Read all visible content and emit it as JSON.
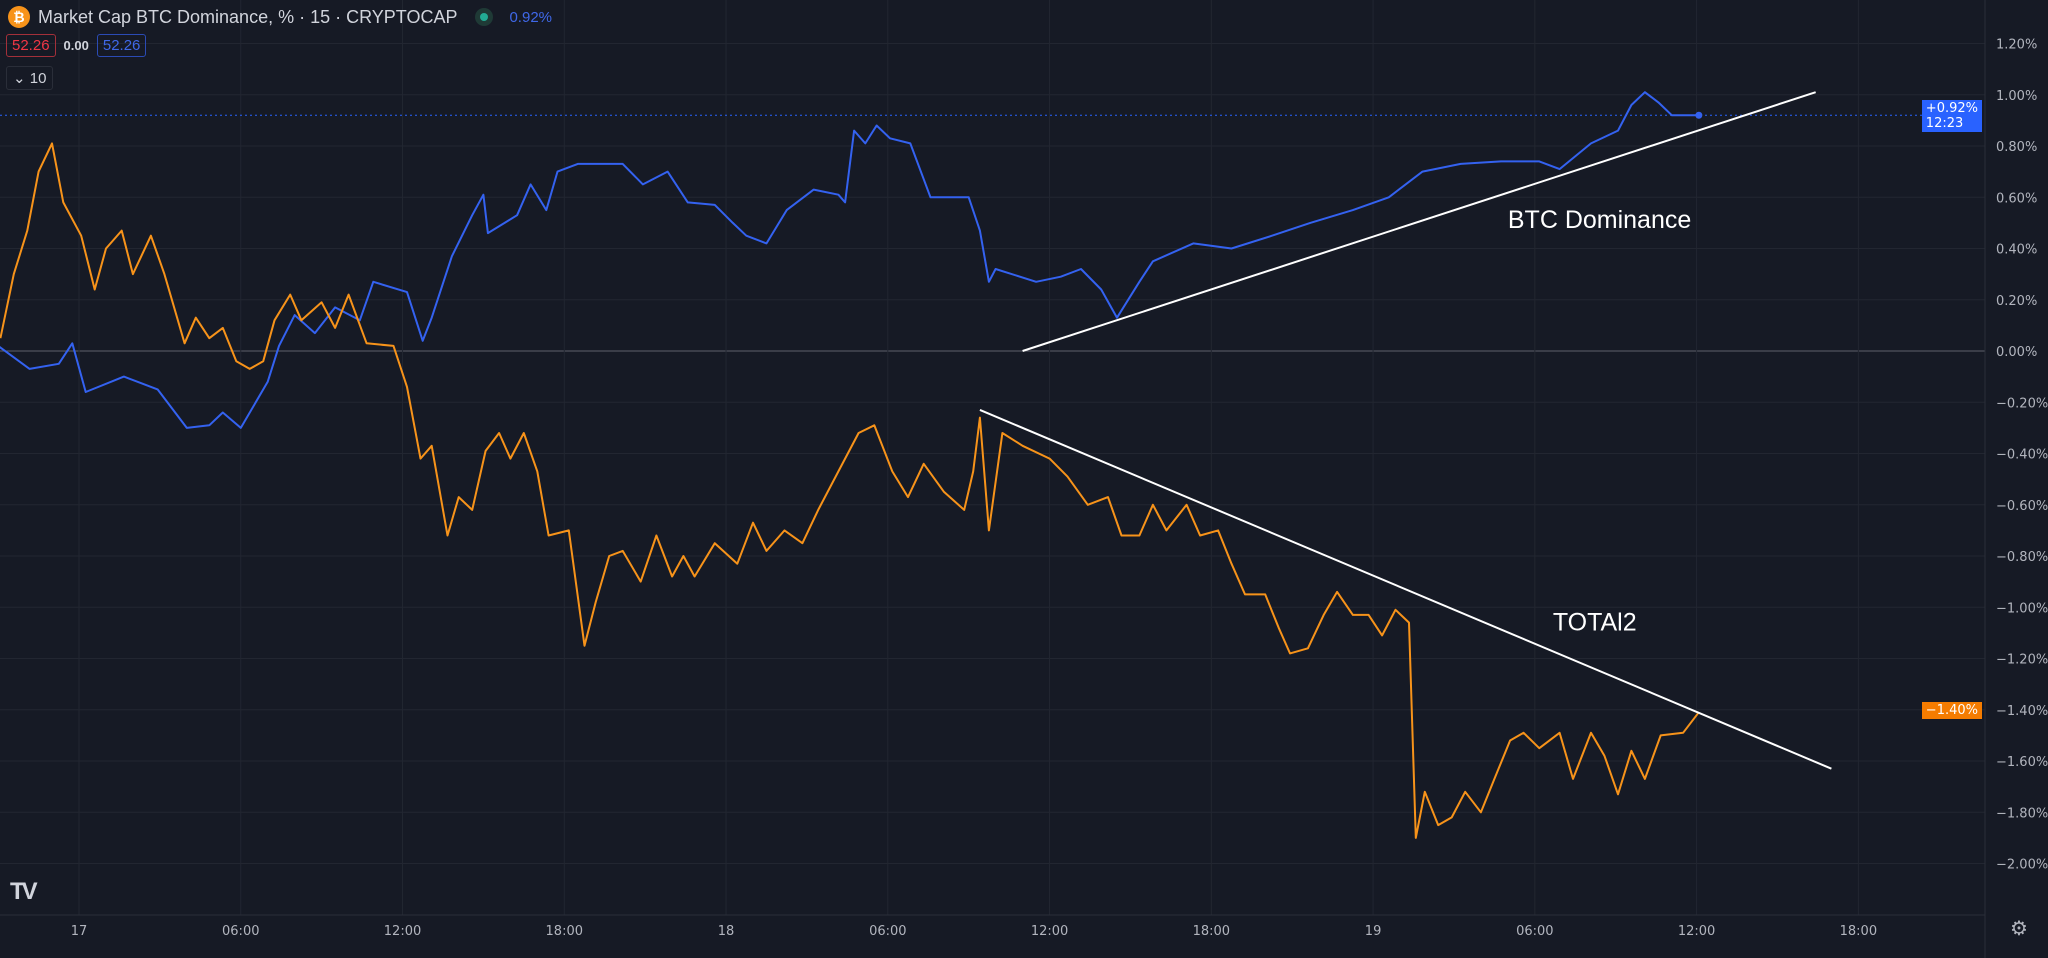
{
  "header": {
    "title": "Market Cap BTC Dominance, % · 15 · CRYPTOCAP",
    "change": "0.92%",
    "value_left": "52.26",
    "value_mid": "0.00",
    "value_right": "52.26",
    "indicators_count": "10",
    "icons": {
      "symbol": "bitcoin-icon",
      "status": "market-open-dot",
      "collapse": "chevron-down-icon",
      "settings": "gear-icon",
      "logo": "tradingview-logo"
    }
  },
  "colors": {
    "background": "#161a25",
    "grid": "#222631",
    "btc_dominance": "#3462f0",
    "total2": "#f7931a",
    "trendline": "#ffffff",
    "axis_text": "#b2b5be"
  },
  "badges": {
    "btc": {
      "value": "+0.92%",
      "time": "12:23"
    },
    "total2": {
      "value": "−1.40%"
    }
  },
  "chart_data": {
    "type": "line",
    "ylim": [
      -2.1,
      1.3
    ],
    "yticks": [
      "1.20%",
      "1.00%",
      "0.80%",
      "0.60%",
      "0.40%",
      "0.20%",
      "0.00%",
      "−0.20%",
      "−0.40%",
      "−0.60%",
      "−0.80%",
      "−1.00%",
      "−1.20%",
      "−1.40%",
      "−1.60%",
      "−1.80%",
      "−2.00%"
    ],
    "ytick_values": [
      1.2,
      1.0,
      0.8,
      0.6,
      0.4,
      0.2,
      0,
      -0.2,
      -0.4,
      -0.6,
      -0.8,
      -1.0,
      -1.2,
      -1.4,
      -1.6,
      -1.8,
      -2.0
    ],
    "xticks": [
      {
        "t": "17 00:00",
        "label": "17"
      },
      {
        "t": "17 06:00",
        "label": "06:00"
      },
      {
        "t": "17 12:00",
        "label": "12:00"
      },
      {
        "t": "17 18:00",
        "label": "18:00"
      },
      {
        "t": "18 00:00",
        "label": "18"
      },
      {
        "t": "18 06:00",
        "label": "06:00"
      },
      {
        "t": "18 12:00",
        "label": "12:00"
      },
      {
        "t": "18 18:00",
        "label": "18:00"
      },
      {
        "t": "19 00:00",
        "label": "19"
      },
      {
        "t": "19 06:00",
        "label": "06:00"
      },
      {
        "t": "19 12:00",
        "label": "12:00"
      },
      {
        "t": "19 18:00",
        "label": "18:00"
      }
    ],
    "grid": true,
    "series": [
      {
        "key": "btc",
        "color": "#3462f0",
        "points": [
          [
            "16 21:00",
            0.02
          ],
          [
            "16 22:10",
            -0.07
          ],
          [
            "16 23:15",
            -0.05
          ],
          [
            "16 23:45",
            0.03
          ],
          [
            "17 00:15",
            -0.16
          ],
          [
            "17 01:40",
            -0.1
          ],
          [
            "17 02:55",
            -0.15
          ],
          [
            "17 04:00",
            -0.3
          ],
          [
            "17 04:50",
            -0.29
          ],
          [
            "17 05:20",
            -0.24
          ],
          [
            "17 06:00",
            -0.3
          ],
          [
            "17 07:00",
            -0.12
          ],
          [
            "17 07:25",
            0.02
          ],
          [
            "17 08:00",
            0.14
          ],
          [
            "17 08:45",
            0.07
          ],
          [
            "17 09:30",
            0.17
          ],
          [
            "17 10:25",
            0.12
          ],
          [
            "17 10:55",
            0.27
          ],
          [
            "17 12:10",
            0.23
          ],
          [
            "17 12:45",
            0.04
          ],
          [
            "17 13:05",
            0.13
          ],
          [
            "17 13:50",
            0.37
          ],
          [
            "17 14:35",
            0.53
          ],
          [
            "17 15:00",
            0.61
          ],
          [
            "17 15:10",
            0.46
          ],
          [
            "17 16:15",
            0.53
          ],
          [
            "17 16:45",
            0.65
          ],
          [
            "17 17:20",
            0.55
          ],
          [
            "17 17:45",
            0.7
          ],
          [
            "17 18:30",
            0.73
          ],
          [
            "17 20:10",
            0.73
          ],
          [
            "17 20:55",
            0.65
          ],
          [
            "17 21:50",
            0.7
          ],
          [
            "17 22:35",
            0.58
          ],
          [
            "17 23:35",
            0.57
          ],
          [
            "18 00:15",
            0.5
          ],
          [
            "18 00:45",
            0.45
          ],
          [
            "18 01:30",
            0.42
          ],
          [
            "18 02:15",
            0.55
          ],
          [
            "18 03:15",
            0.63
          ],
          [
            "18 04:10",
            0.61
          ],
          [
            "18 04:25",
            0.58
          ],
          [
            "18 04:45",
            0.86
          ],
          [
            "18 05:10",
            0.81
          ],
          [
            "18 05:35",
            0.88
          ],
          [
            "18 06:05",
            0.83
          ],
          [
            "18 06:50",
            0.81
          ],
          [
            "18 07:35",
            0.6
          ],
          [
            "18 09:00",
            0.6
          ],
          [
            "18 09:25",
            0.47
          ],
          [
            "18 09:45",
            0.27
          ],
          [
            "18 10:00",
            0.32
          ],
          [
            "18 11:30",
            0.27
          ],
          [
            "18 12:25",
            0.29
          ],
          [
            "18 13:10",
            0.32
          ],
          [
            "18 13:55",
            0.24
          ],
          [
            "18 14:30",
            0.13
          ],
          [
            "18 15:20",
            0.27
          ],
          [
            "18 15:50",
            0.35
          ],
          [
            "18 17:20",
            0.42
          ],
          [
            "18 18:45",
            0.4
          ],
          [
            "18 20:15",
            0.45
          ],
          [
            "18 21:40",
            0.5
          ],
          [
            "18 23:15",
            0.55
          ],
          [
            "19 00:35",
            0.6
          ],
          [
            "19 01:50",
            0.7
          ],
          [
            "19 03:15",
            0.73
          ],
          [
            "19 04:45",
            0.74
          ],
          [
            "19 06:10",
            0.74
          ],
          [
            "19 06:55",
            0.71
          ],
          [
            "19 08:05",
            0.81
          ],
          [
            "19 09:05",
            0.86
          ],
          [
            "19 09:35",
            0.96
          ],
          [
            "19 10:05",
            1.01
          ],
          [
            "19 10:35",
            0.97
          ],
          [
            "19 11:05",
            0.92
          ],
          [
            "19 12:05",
            0.92
          ]
        ]
      },
      {
        "key": "total2",
        "color": "#f7931a",
        "points": [
          [
            "16 21:05",
            0.05
          ],
          [
            "16 21:35",
            0.3
          ],
          [
            "16 22:05",
            0.47
          ],
          [
            "16 22:30",
            0.7
          ],
          [
            "16 23:00",
            0.81
          ],
          [
            "16 23:25",
            0.58
          ],
          [
            "17 00:05",
            0.45
          ],
          [
            "17 00:35",
            0.24
          ],
          [
            "17 01:00",
            0.4
          ],
          [
            "17 01:35",
            0.47
          ],
          [
            "17 02:00",
            0.3
          ],
          [
            "17 02:40",
            0.45
          ],
          [
            "17 03:10",
            0.3
          ],
          [
            "17 03:55",
            0.03
          ],
          [
            "17 04:20",
            0.13
          ],
          [
            "17 04:50",
            0.05
          ],
          [
            "17 05:20",
            0.09
          ],
          [
            "17 05:50",
            -0.04
          ],
          [
            "17 06:20",
            -0.07
          ],
          [
            "17 06:50",
            -0.04
          ],
          [
            "17 07:15",
            0.12
          ],
          [
            "17 07:50",
            0.22
          ],
          [
            "17 08:15",
            0.12
          ],
          [
            "17 09:00",
            0.19
          ],
          [
            "17 09:30",
            0.09
          ],
          [
            "17 10:00",
            0.22
          ],
          [
            "17 10:40",
            0.03
          ],
          [
            "17 11:40",
            0.02
          ],
          [
            "17 12:10",
            -0.14
          ],
          [
            "17 12:40",
            -0.42
          ],
          [
            "17 13:05",
            -0.37
          ],
          [
            "17 13:40",
            -0.72
          ],
          [
            "17 14:05",
            -0.57
          ],
          [
            "17 14:35",
            -0.62
          ],
          [
            "17 15:05",
            -0.39
          ],
          [
            "17 15:35",
            -0.32
          ],
          [
            "17 16:00",
            -0.42
          ],
          [
            "17 16:30",
            -0.32
          ],
          [
            "17 17:00",
            -0.47
          ],
          [
            "17 17:25",
            -0.72
          ],
          [
            "17 18:10",
            -0.7
          ],
          [
            "17 18:45",
            -1.15
          ],
          [
            "17 19:10",
            -0.98
          ],
          [
            "17 19:40",
            -0.8
          ],
          [
            "17 20:10",
            -0.78
          ],
          [
            "17 20:50",
            -0.9
          ],
          [
            "17 21:25",
            -0.72
          ],
          [
            "17 22:00",
            -0.88
          ],
          [
            "17 22:25",
            -0.8
          ],
          [
            "17 22:50",
            -0.88
          ],
          [
            "17 23:35",
            -0.75
          ],
          [
            "18 00:25",
            -0.83
          ],
          [
            "18 01:00",
            -0.67
          ],
          [
            "18 01:30",
            -0.78
          ],
          [
            "18 02:10",
            -0.7
          ],
          [
            "18 02:50",
            -0.75
          ],
          [
            "18 03:25",
            -0.62
          ],
          [
            "18 04:10",
            -0.47
          ],
          [
            "18 04:55",
            -0.32
          ],
          [
            "18 05:30",
            -0.29
          ],
          [
            "18 06:10",
            -0.47
          ],
          [
            "18 06:45",
            -0.57
          ],
          [
            "18 07:20",
            -0.44
          ],
          [
            "18 08:05",
            -0.55
          ],
          [
            "18 08:50",
            -0.62
          ],
          [
            "18 09:10",
            -0.47
          ],
          [
            "18 09:25",
            -0.26
          ],
          [
            "18 09:45",
            -0.7
          ],
          [
            "18 10:15",
            -0.32
          ],
          [
            "18 11:00",
            -0.37
          ],
          [
            "18 12:00",
            -0.42
          ],
          [
            "18 12:40",
            -0.49
          ],
          [
            "18 13:25",
            -0.6
          ],
          [
            "18 14:10",
            -0.57
          ],
          [
            "18 14:40",
            -0.72
          ],
          [
            "18 15:20",
            -0.72
          ],
          [
            "18 15:50",
            -0.6
          ],
          [
            "18 16:20",
            -0.7
          ],
          [
            "18 17:05",
            -0.6
          ],
          [
            "18 17:35",
            -0.72
          ],
          [
            "18 18:15",
            -0.7
          ],
          [
            "18 18:45",
            -0.83
          ],
          [
            "18 19:15",
            -0.95
          ],
          [
            "18 20:00",
            -0.95
          ],
          [
            "18 20:30",
            -1.08
          ],
          [
            "18 20:55",
            -1.18
          ],
          [
            "18 21:35",
            -1.16
          ],
          [
            "18 22:10",
            -1.03
          ],
          [
            "18 22:40",
            -0.94
          ],
          [
            "18 23:15",
            -1.03
          ],
          [
            "18 23:50",
            -1.03
          ],
          [
            "19 00:20",
            -1.11
          ],
          [
            "19 00:50",
            -1.01
          ],
          [
            "19 01:20",
            -1.06
          ],
          [
            "19 01:35",
            -1.9
          ],
          [
            "19 01:55",
            -1.72
          ],
          [
            "19 02:25",
            -1.85
          ],
          [
            "19 02:55",
            -1.82
          ],
          [
            "19 03:25",
            -1.72
          ],
          [
            "19 04:00",
            -1.8
          ],
          [
            "19 04:30",
            -1.67
          ],
          [
            "19 05:05",
            -1.52
          ],
          [
            "19 05:35",
            -1.49
          ],
          [
            "19 06:10",
            -1.55
          ],
          [
            "19 06:55",
            -1.49
          ],
          [
            "19 07:25",
            -1.67
          ],
          [
            "19 08:05",
            -1.49
          ],
          [
            "19 08:35",
            -1.58
          ],
          [
            "19 09:05",
            -1.73
          ],
          [
            "19 09:35",
            -1.56
          ],
          [
            "19 10:05",
            -1.67
          ],
          [
            "19 10:40",
            -1.5
          ],
          [
            "19 11:30",
            -1.49
          ],
          [
            "19 12:05",
            -1.41
          ]
        ]
      }
    ],
    "trendlines": [
      {
        "from": [
          "18 11:00",
          0.0
        ],
        "to": [
          "19 16:25",
          1.01
        ]
      },
      {
        "from": [
          "18 09:25",
          -0.23
        ],
        "to": [
          "19 17:00",
          -1.63
        ]
      }
    ],
    "annotations": [
      {
        "text": "BTC Dominance",
        "t": "19 05:00",
        "v": 0.48
      },
      {
        "text": "TOTAl2",
        "t": "19 06:40",
        "v": -1.09
      }
    ],
    "last_value_line": 0.92
  }
}
